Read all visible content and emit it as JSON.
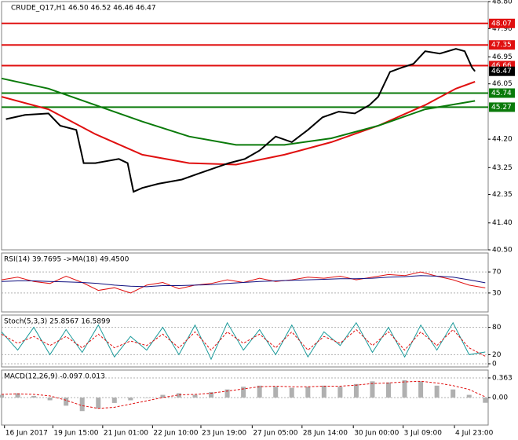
{
  "chart_data": [
    {
      "type": "line",
      "title": "CRUDE_Q17,H1  46.50 46.52 46.46 46.47",
      "xlim": [
        0,
        332
      ],
      "xticks": [
        {
          "value": 2,
          "label": "16 Jun 2017"
        },
        {
          "value": 35,
          "label": "19 Jun 15:00"
        },
        {
          "value": 69,
          "label": "21 Jun 01:00"
        },
        {
          "value": 103,
          "label": "22 Jun 10:00"
        },
        {
          "value": 136,
          "label": "23 Jun 19:00"
        },
        {
          "value": 171,
          "label": "27 Jun 05:00"
        },
        {
          "value": 205,
          "label": "28 Jun 14:00"
        },
        {
          "value": 240,
          "label": "30 Jun 00:00"
        },
        {
          "value": 274,
          "label": "3 Jul 09:00"
        },
        {
          "value": 309,
          "label": "4 Jul 23:00"
        }
      ],
      "ylim": [
        40.5,
        48.8
      ],
      "yticks": [
        {
          "value": 48.8,
          "label": "48.80"
        },
        {
          "value": 47.9,
          "label": "47.90"
        },
        {
          "value": 46.95,
          "label": "46.95"
        },
        {
          "value": 46.05,
          "label": "46.05"
        },
        {
          "value": 44.2,
          "label": "44.20"
        },
        {
          "value": 43.25,
          "label": "43.25"
        },
        {
          "value": 42.35,
          "label": "42.35"
        },
        {
          "value": 41.4,
          "label": "41.40"
        },
        {
          "value": 40.5,
          "label": "40.50"
        }
      ],
      "series": [
        {
          "color": "#e01010",
          "style": "line",
          "x": [
            0,
            32,
            64,
            96,
            128,
            160,
            193,
            225,
            257,
            289,
            310,
            323
          ],
          "values": [
            45.62,
            45.2,
            44.37,
            43.68,
            43.4,
            43.35,
            43.68,
            44.1,
            44.65,
            45.34,
            45.89,
            46.12
          ]
        },
        {
          "color": "#0a7a0a",
          "style": "line",
          "x": [
            0,
            32,
            64,
            96,
            128,
            160,
            193,
            225,
            257,
            289,
            323
          ],
          "values": [
            46.23,
            45.89,
            45.34,
            44.79,
            44.29,
            44.01,
            44.01,
            44.23,
            44.65,
            45.2,
            45.48
          ]
        },
        {
          "color": "#000000",
          "style": "line",
          "x": [
            3,
            16,
            32,
            40,
            51,
            56,
            64,
            80,
            86,
            90,
            96,
            107,
            123,
            139,
            155,
            166,
            176,
            187,
            198,
            209,
            219,
            230,
            241,
            251,
            257,
            265,
            273,
            281,
            289,
            299,
            310,
            316,
            321,
            323
          ],
          "values": [
            44.87,
            45.01,
            45.06,
            44.65,
            44.51,
            43.4,
            43.4,
            43.54,
            43.4,
            42.44,
            42.57,
            42.71,
            42.85,
            43.13,
            43.4,
            43.54,
            43.82,
            44.29,
            44.1,
            44.51,
            44.93,
            45.12,
            45.06,
            45.34,
            45.62,
            46.45,
            46.59,
            46.72,
            47.14,
            47.06,
            47.22,
            47.14,
            46.59,
            46.47
          ]
        }
      ],
      "levels": [
        {
          "value": 48.07,
          "color": "#e01010"
        },
        {
          "value": 47.35,
          "color": "#e01010"
        },
        {
          "value": 46.66,
          "color": "#e01010"
        },
        {
          "value": 45.74,
          "color": "#0a7a0a"
        },
        {
          "value": 45.27,
          "color": "#0a7a0a"
        }
      ],
      "last_price": 46.47
    },
    {
      "type": "line",
      "title": "RSI(14) 39.7695 ->MA(18) 49.4500",
      "xlim": [
        0,
        332
      ],
      "ylim": [
        0,
        100
      ],
      "yticks": [
        70,
        30
      ],
      "series": [
        {
          "color": "#e01010",
          "style": "line",
          "x": [
            0,
            11,
            22,
            33,
            44,
            55,
            66,
            77,
            88,
            99,
            110,
            121,
            132,
            143,
            154,
            165,
            176,
            187,
            198,
            209,
            220,
            231,
            242,
            253,
            264,
            275,
            286,
            297,
            308,
            319,
            330
          ],
          "values": [
            55,
            60,
            52,
            48,
            62,
            50,
            35,
            40,
            30,
            45,
            50,
            38,
            45,
            48,
            55,
            50,
            58,
            52,
            55,
            60,
            58,
            62,
            55,
            60,
            65,
            63,
            70,
            62,
            55,
            45,
            39.77
          ]
        },
        {
          "color": "#101080",
          "style": "line",
          "x": [
            0,
            11,
            22,
            33,
            44,
            55,
            66,
            77,
            88,
            99,
            110,
            121,
            132,
            143,
            154,
            165,
            176,
            187,
            198,
            209,
            220,
            231,
            242,
            253,
            264,
            275,
            286,
            297,
            308,
            319,
            330
          ],
          "values": [
            52,
            53,
            53,
            52,
            51,
            50,
            48,
            45,
            43,
            42,
            44,
            44,
            45,
            46,
            48,
            50,
            52,
            53,
            54,
            55,
            56,
            57,
            57,
            58,
            60,
            61,
            63,
            62,
            60,
            55,
            49.45
          ]
        }
      ]
    },
    {
      "type": "line",
      "title": "Stoch(5,3,3) 25.8567 16.5899",
      "xlim": [
        0,
        332
      ],
      "ylim": [
        0,
        100
      ],
      "yticks": [
        80,
        20,
        0
      ],
      "series": [
        {
          "color": "#1a9a9a",
          "style": "line",
          "x": [
            0,
            11,
            22,
            33,
            44,
            55,
            66,
            77,
            88,
            99,
            110,
            121,
            132,
            143,
            154,
            165,
            176,
            187,
            198,
            209,
            220,
            231,
            242,
            253,
            264,
            275,
            286,
            297,
            308,
            319,
            330
          ],
          "values": [
            70,
            30,
            80,
            20,
            75,
            25,
            85,
            15,
            60,
            30,
            80,
            20,
            85,
            10,
            90,
            30,
            75,
            20,
            85,
            15,
            70,
            40,
            90,
            25,
            80,
            15,
            85,
            30,
            90,
            20,
            25.86
          ]
        },
        {
          "color": "#e01010",
          "style": "dashed",
          "x": [
            0,
            11,
            22,
            33,
            44,
            55,
            66,
            77,
            88,
            99,
            110,
            121,
            132,
            143,
            154,
            165,
            176,
            187,
            198,
            209,
            220,
            231,
            242,
            253,
            264,
            275,
            286,
            297,
            308,
            319,
            330
          ],
          "values": [
            65,
            45,
            60,
            40,
            60,
            35,
            65,
            35,
            50,
            40,
            65,
            35,
            70,
            30,
            70,
            45,
            65,
            35,
            70,
            30,
            60,
            45,
            75,
            40,
            70,
            30,
            70,
            40,
            75,
            35,
            16.59
          ]
        }
      ]
    },
    {
      "type": "bar",
      "title": "MACD(12,26,9) -0.097 0.013",
      "xlim": [
        0,
        332
      ],
      "ylim": [
        -0.45,
        0.45
      ],
      "yticks": [
        0.363,
        {
          "value": 0,
          "label": "0.00"
        }
      ],
      "series": [
        {
          "color": "#b0b0b0",
          "style": "histogram",
          "x": [
            0,
            11,
            22,
            33,
            44,
            55,
            66,
            77,
            88,
            99,
            110,
            121,
            132,
            143,
            154,
            165,
            176,
            187,
            198,
            209,
            220,
            231,
            242,
            253,
            264,
            275,
            286,
            297,
            308,
            319,
            330
          ],
          "values": [
            0.05,
            0.08,
            0.03,
            -0.05,
            -0.15,
            -0.25,
            -0.2,
            -0.1,
            -0.05,
            0.0,
            0.05,
            0.08,
            0.05,
            0.1,
            0.15,
            0.2,
            0.22,
            0.2,
            0.18,
            0.2,
            0.22,
            0.2,
            0.25,
            0.3,
            0.28,
            0.32,
            0.3,
            0.22,
            0.15,
            0.05,
            -0.097
          ]
        },
        {
          "color": "#e01010",
          "style": "dashed",
          "x": [
            0,
            11,
            22,
            33,
            44,
            55,
            66,
            77,
            88,
            99,
            110,
            121,
            132,
            143,
            154,
            165,
            176,
            187,
            198,
            209,
            220,
            231,
            242,
            253,
            264,
            275,
            286,
            297,
            308,
            319,
            330
          ],
          "values": [
            0.06,
            0.07,
            0.06,
            0.03,
            -0.05,
            -0.15,
            -0.2,
            -0.18,
            -0.12,
            -0.06,
            0.0,
            0.05,
            0.06,
            0.08,
            0.12,
            0.16,
            0.2,
            0.21,
            0.2,
            0.2,
            0.21,
            0.21,
            0.23,
            0.26,
            0.27,
            0.29,
            0.3,
            0.27,
            0.22,
            0.15,
            0.013
          ]
        }
      ]
    }
  ]
}
